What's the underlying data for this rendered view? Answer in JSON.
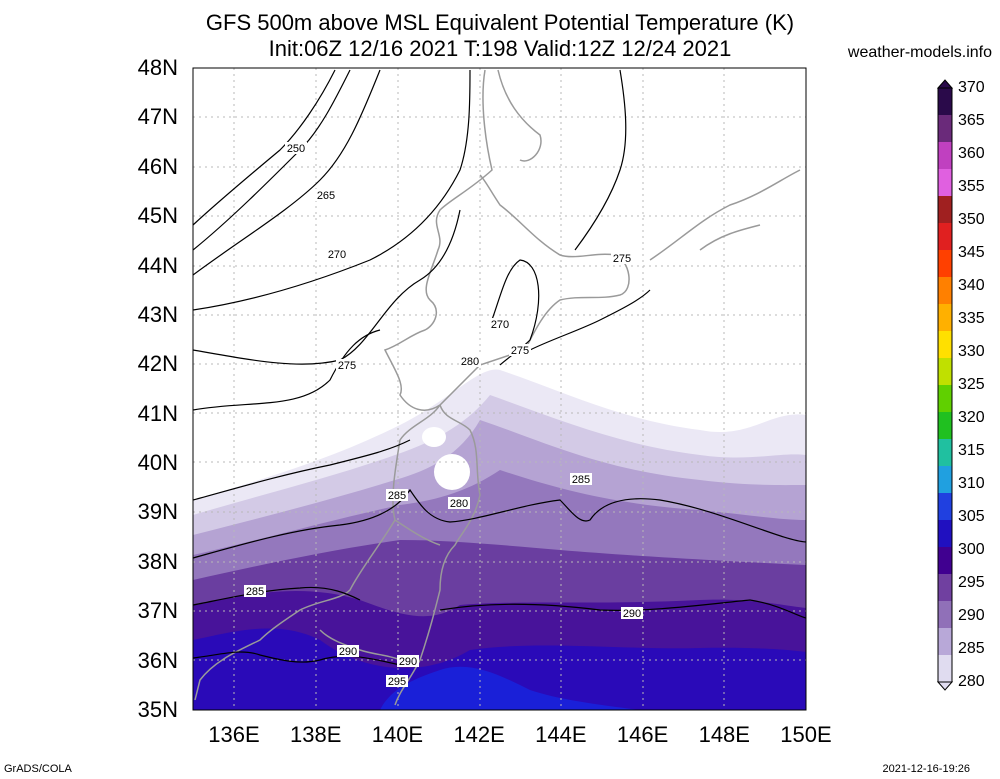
{
  "title_line1": "GFS 500m above MSL Equivalent Potential Temperature (K)",
  "title_line2": "Init:06Z 12/16 2021 T:198 Valid:12Z 12/24 2021",
  "site": "weather-models.info",
  "footer_left": "GrADS/COLA",
  "footer_right": "2021-12-16-19:26",
  "lat_labels": [
    "48N",
    "47N",
    "46N",
    "45N",
    "44N",
    "43N",
    "42N",
    "41N",
    "40N",
    "39N",
    "38N",
    "37N",
    "36N",
    "35N"
  ],
  "lon_labels": [
    "136E",
    "138E",
    "140E",
    "142E",
    "144E",
    "146E",
    "148E",
    "150E"
  ],
  "colorbar": {
    "labels": [
      "370",
      "365",
      "360",
      "355",
      "350",
      "345",
      "340",
      "335",
      "330",
      "325",
      "320",
      "315",
      "310",
      "305",
      "300",
      "295",
      "290",
      "285",
      "280"
    ],
    "colors": [
      "#2a0a4a",
      "#6a2a7a",
      "#c040c0",
      "#e060e0",
      "#a02020",
      "#e02020",
      "#ff4000",
      "#ff8000",
      "#ffb000",
      "#ffe000",
      "#c0e000",
      "#60d000",
      "#20c020",
      "#20c0a0",
      "#20a0e0",
      "#2040e0",
      "#2010c0",
      "#400090",
      "#7040a0",
      "#9070b8",
      "#b8a8d8",
      "#e0dcf0"
    ]
  },
  "contour_labels": [
    "250",
    "265",
    "270",
    "270",
    "275",
    "275",
    "275",
    "280",
    "280",
    "285",
    "285",
    "285",
    "290",
    "290",
    "290",
    "295"
  ],
  "map": {
    "region": "Northern Japan",
    "lat_range": [
      35,
      48
    ],
    "lon_range": [
      135,
      150
    ],
    "field": "Equivalent potential temperature (K) at 500 m above MSL"
  }
}
